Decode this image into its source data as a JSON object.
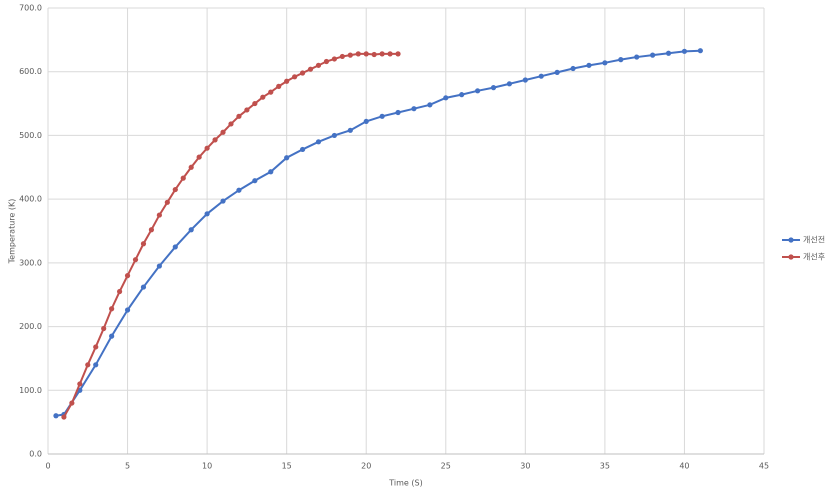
{
  "chart_data": {
    "type": "line",
    "xlabel": "Time (S)",
    "ylabel": "Temperature (K)",
    "xlim": [
      0,
      45
    ],
    "xticks": [
      0,
      5,
      10,
      15,
      20,
      25,
      30,
      35,
      40,
      45
    ],
    "ylim": [
      0,
      700
    ],
    "yticks": [
      {
        "value": 0,
        "label": "0.0"
      },
      {
        "value": 100,
        "label": "100.0"
      },
      {
        "value": 200,
        "label": "200.0"
      },
      {
        "value": 300,
        "label": "300.0"
      },
      {
        "value": 400,
        "label": "400.0"
      },
      {
        "value": 500,
        "label": "500.0"
      },
      {
        "value": 600,
        "label": "600.0"
      },
      {
        "value": 700,
        "label": "700.0"
      }
    ],
    "grid": true,
    "legend": "right",
    "series": [
      {
        "name": "개선전",
        "color": "#4472c4",
        "x": [
          0.5,
          1,
          2,
          3,
          4,
          5,
          6,
          7,
          8,
          9,
          10,
          11,
          12,
          13,
          14,
          15,
          16,
          17,
          18,
          19,
          20,
          21,
          22,
          23,
          24,
          25,
          26,
          27,
          28,
          29,
          30,
          31,
          32,
          33,
          34,
          35,
          36,
          37,
          38,
          39,
          40,
          41
        ],
        "values": [
          60,
          62,
          100,
          140,
          185,
          226,
          262,
          295,
          325,
          352,
          377,
          397,
          414,
          429,
          443,
          465,
          478,
          490,
          500,
          508,
          522,
          530,
          536,
          542,
          548,
          559,
          564,
          570,
          575,
          581,
          587,
          593,
          599,
          605,
          610,
          614,
          619,
          623,
          626,
          629,
          632,
          633
        ]
      },
      {
        "name": "개선후",
        "color": "#c0504d",
        "x": [
          1,
          1.5,
          2,
          2.5,
          3,
          3.5,
          4,
          4.5,
          5,
          5.5,
          6,
          6.5,
          7,
          7.5,
          8,
          8.5,
          9,
          9.5,
          10,
          10.5,
          11,
          11.5,
          12,
          12.5,
          13,
          13.5,
          14,
          14.5,
          15,
          15.5,
          16,
          16.5,
          17,
          17.5,
          18,
          18.5,
          19,
          19.5,
          20,
          20.5,
          21,
          21.5,
          22
        ],
        "values": [
          58,
          80,
          110,
          140,
          168,
          197,
          228,
          255,
          280,
          305,
          330,
          352,
          375,
          395,
          415,
          433,
          450,
          466,
          480,
          493,
          505,
          518,
          530,
          540,
          550,
          560,
          568,
          577,
          585,
          592,
          598,
          604,
          610,
          616,
          620,
          624,
          626,
          628,
          628,
          627,
          628,
          628,
          628
        ]
      }
    ]
  }
}
